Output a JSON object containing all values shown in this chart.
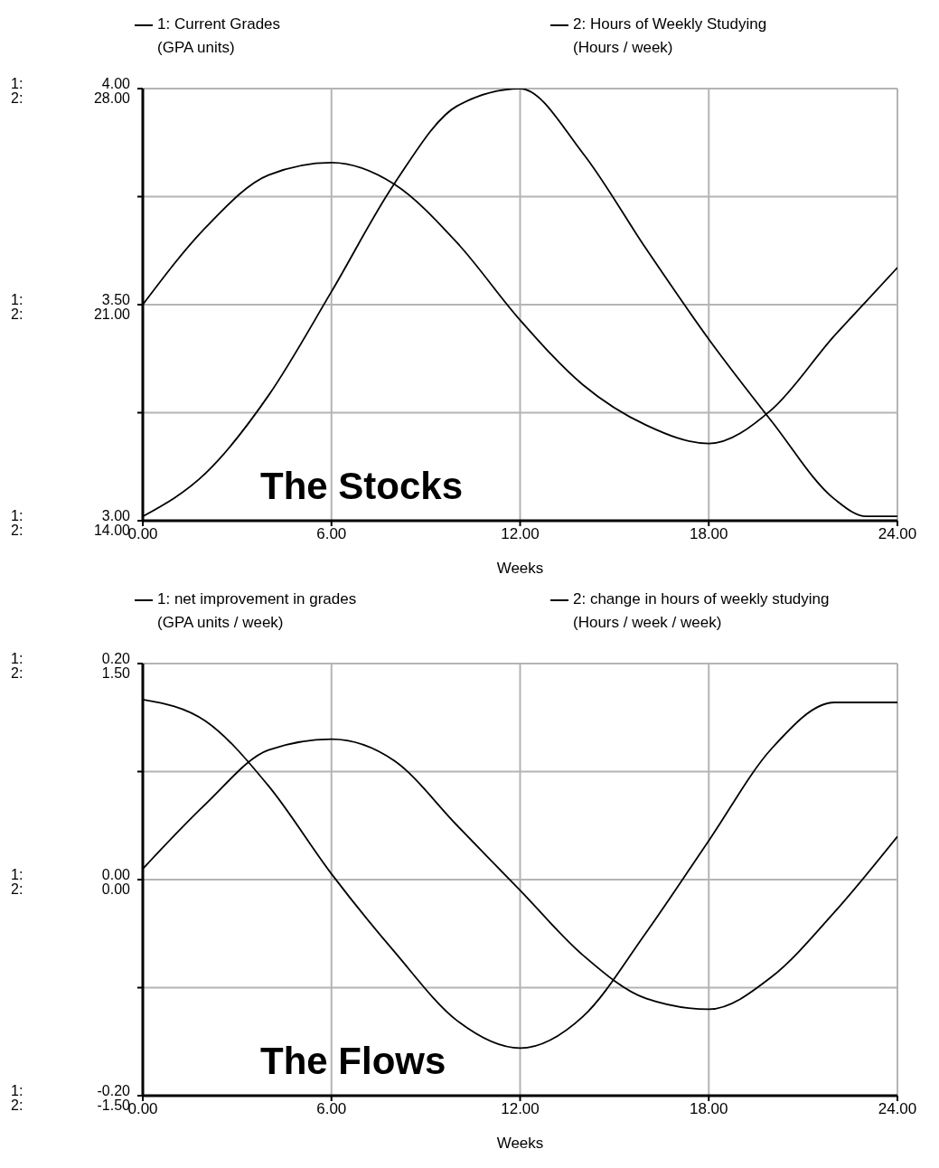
{
  "chart_data": [
    {
      "type": "line",
      "xlabel": "Weeks",
      "legend": "top",
      "grid": true,
      "x": [
        0,
        2,
        4,
        6,
        8,
        10,
        12,
        14,
        16,
        18,
        20,
        22,
        23,
        24
      ],
      "xlim": [
        0,
        24
      ],
      "xticks": [
        {
          "value": 0,
          "label": "0.00"
        },
        {
          "value": 6,
          "label": "6.00"
        },
        {
          "value": 12,
          "label": "12.00"
        },
        {
          "value": 18,
          "label": "18.00"
        },
        {
          "value": 24,
          "label": "24.00"
        }
      ],
      "ylim": [
        3,
        4
      ],
      "yticks": [
        {
          "value": 3,
          "label": "3.00"
        },
        {
          "value": 3.25,
          "label": null
        },
        {
          "value": 3.5,
          "label": "3.50"
        },
        {
          "value": 3.75,
          "label": null
        },
        {
          "value": 4,
          "label": "4.00"
        }
      ],
      "y2lim": [
        14,
        28
      ],
      "y2ticks": [
        {
          "value": 14,
          "label": "14.00"
        },
        {
          "value": 17.5,
          "label": null
        },
        {
          "value": 21,
          "label": "21.00"
        },
        {
          "value": 24.5,
          "label": null
        },
        {
          "value": 28,
          "label": "28.00"
        }
      ],
      "series": [
        {
          "name": "1: Current Grades\n(GPA units)",
          "color": "#000000",
          "values": [
            3.01,
            3.11,
            3.29,
            3.53,
            3.78,
            3.96,
            4.0,
            3.85,
            3.63,
            3.42,
            3.23,
            3.05,
            3.01,
            3.01
          ]
        },
        {
          "name": "2: Hours of Weekly Studying\n(Hours / week)",
          "color": "#000000",
          "axis": "y2",
          "values": [
            21.0,
            23.5,
            25.2,
            25.6,
            24.9,
            23.0,
            20.5,
            18.4,
            17.1,
            16.5,
            17.6,
            20.0,
            21.1,
            22.2
          ]
        }
      ],
      "annotations": [
        "The Stocks",
        "1:",
        "2:"
      ]
    },
    {
      "type": "line",
      "xlabel": "Weeks",
      "legend": "top",
      "grid": true,
      "x": [
        0,
        2,
        4,
        6,
        8,
        10,
        12,
        14,
        16,
        18,
        20,
        22,
        24
      ],
      "xlim": [
        0,
        24
      ],
      "xticks": [
        {
          "value": 0,
          "label": "0.00"
        },
        {
          "value": 6,
          "label": "6.00"
        },
        {
          "value": 12,
          "label": "12.00"
        },
        {
          "value": 18,
          "label": "18.00"
        },
        {
          "value": 24,
          "label": "24.00"
        }
      ],
      "ylim": [
        -0.2,
        0.2
      ],
      "yticks": [
        {
          "value": -0.2,
          "label": "-0.20"
        },
        {
          "value": -0.1,
          "label": null
        },
        {
          "value": 0,
          "label": "0.00"
        },
        {
          "value": 0.1,
          "label": null
        },
        {
          "value": 0.2,
          "label": "0.20"
        }
      ],
      "y2lim": [
        -1.5,
        1.5
      ],
      "y2ticks": [
        {
          "value": -1.5,
          "label": "-1.50"
        },
        {
          "value": -0.75,
          "label": null
        },
        {
          "value": 0,
          "label": "0.00"
        },
        {
          "value": 0.75,
          "label": null
        },
        {
          "value": 1.5,
          "label": "1.50"
        }
      ],
      "series": [
        {
          "name": "1: net improvement in grades\n(GPA units / week)",
          "color": "#000000",
          "values": [
            0.01,
            0.07,
            0.12,
            0.13,
            0.11,
            0.05,
            -0.01,
            -0.07,
            -0.11,
            -0.12,
            -0.09,
            -0.03,
            0.04
          ]
        },
        {
          "name": "2: change in hours of weekly studying\n(Hours / week / week)",
          "color": "#000000",
          "axis": "y2",
          "values": [
            1.25,
            1.1,
            0.65,
            0.04,
            -0.5,
            -0.98,
            -1.17,
            -0.95,
            -0.37,
            0.27,
            0.91,
            1.23,
            1.23
          ]
        }
      ],
      "annotations": [
        "The Flows",
        "1:",
        "2:"
      ]
    }
  ]
}
